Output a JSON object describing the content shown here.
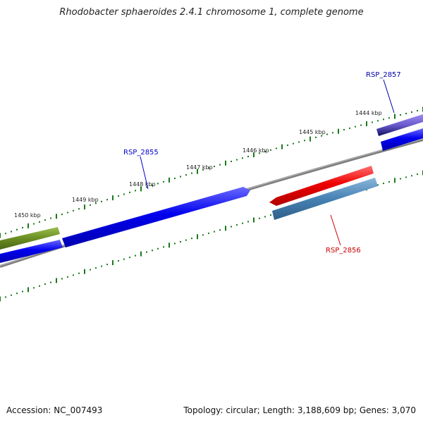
{
  "title": "Rhodobacter sphaeroides 2.4.1 chromosome 1, complete genome",
  "footer": {
    "accession": "Accession: NC_007493",
    "summary": "Topology: circular; Length: 3,188,609 bp; Genes: 3,070"
  },
  "ticks": [
    {
      "label": "1450 kbp"
    },
    {
      "label": "1449 kbp"
    },
    {
      "label": "1448 kbp"
    },
    {
      "label": "1447 kbp"
    },
    {
      "label": "1446 kbp"
    },
    {
      "label": "1445 kbp"
    },
    {
      "label": "1444 kbp"
    }
  ],
  "genes": [
    {
      "label": "RSP_2855",
      "color": "#0000cc"
    },
    {
      "label": "RSP_2856",
      "color": "#cc0000"
    },
    {
      "label": "RSP_2857",
      "color": "#0000aa"
    }
  ],
  "colors": {
    "forward_gene": "#0000ee",
    "reverse_gene": "#ee0000",
    "rna_gene": "#6b8e23",
    "backbone": "#808080",
    "tick": "#1a7a1a",
    "reverse_highlight": "#4682b4",
    "forward_highlight": "#6a5acd"
  }
}
